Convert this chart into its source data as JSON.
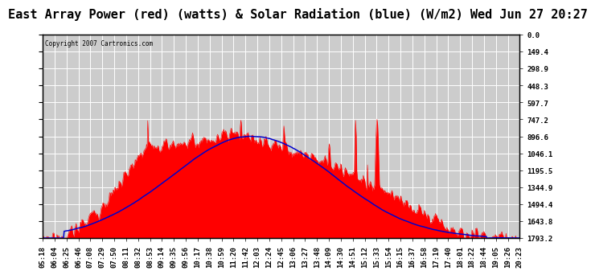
{
  "title": "East Array Power (red) (watts) & Solar Radiation (blue) (W/m2) Wed Jun 27 20:27",
  "copyright": "Copyright 2007 Cartronics.com",
  "ylabel_right": [
    "1793.2",
    "1643.8",
    "1494.4",
    "1344.9",
    "1195.5",
    "1046.1",
    "896.6",
    "747.2",
    "597.7",
    "448.3",
    "298.9",
    "149.4",
    "0.0"
  ],
  "ymax": 1793.2,
  "ymin": 0.0,
  "yticks": [
    0.0,
    149.4,
    298.9,
    448.3,
    597.7,
    747.2,
    896.6,
    1046.1,
    1195.5,
    1344.9,
    1494.4,
    1643.8,
    1793.2
  ],
  "bg_color": "#ffffff",
  "plot_bg": "#cccccc",
  "grid_color": "#ffffff",
  "red_color": "#ff0000",
  "blue_color": "#0000cc",
  "title_fontsize": 11,
  "tick_fontsize": 6.5,
  "xtick_labels": [
    "05:18",
    "06:04",
    "06:25",
    "06:46",
    "07:08",
    "07:29",
    "07:50",
    "08:11",
    "08:32",
    "08:53",
    "09:14",
    "09:35",
    "09:56",
    "10:17",
    "10:38",
    "10:59",
    "11:20",
    "11:42",
    "12:03",
    "12:24",
    "12:45",
    "13:06",
    "13:27",
    "13:48",
    "14:09",
    "14:30",
    "14:51",
    "15:12",
    "15:33",
    "15:54",
    "16:15",
    "16:37",
    "16:58",
    "17:19",
    "17:40",
    "18:01",
    "18:22",
    "18:44",
    "19:05",
    "19:26",
    "20:23"
  ],
  "n_points": 800
}
